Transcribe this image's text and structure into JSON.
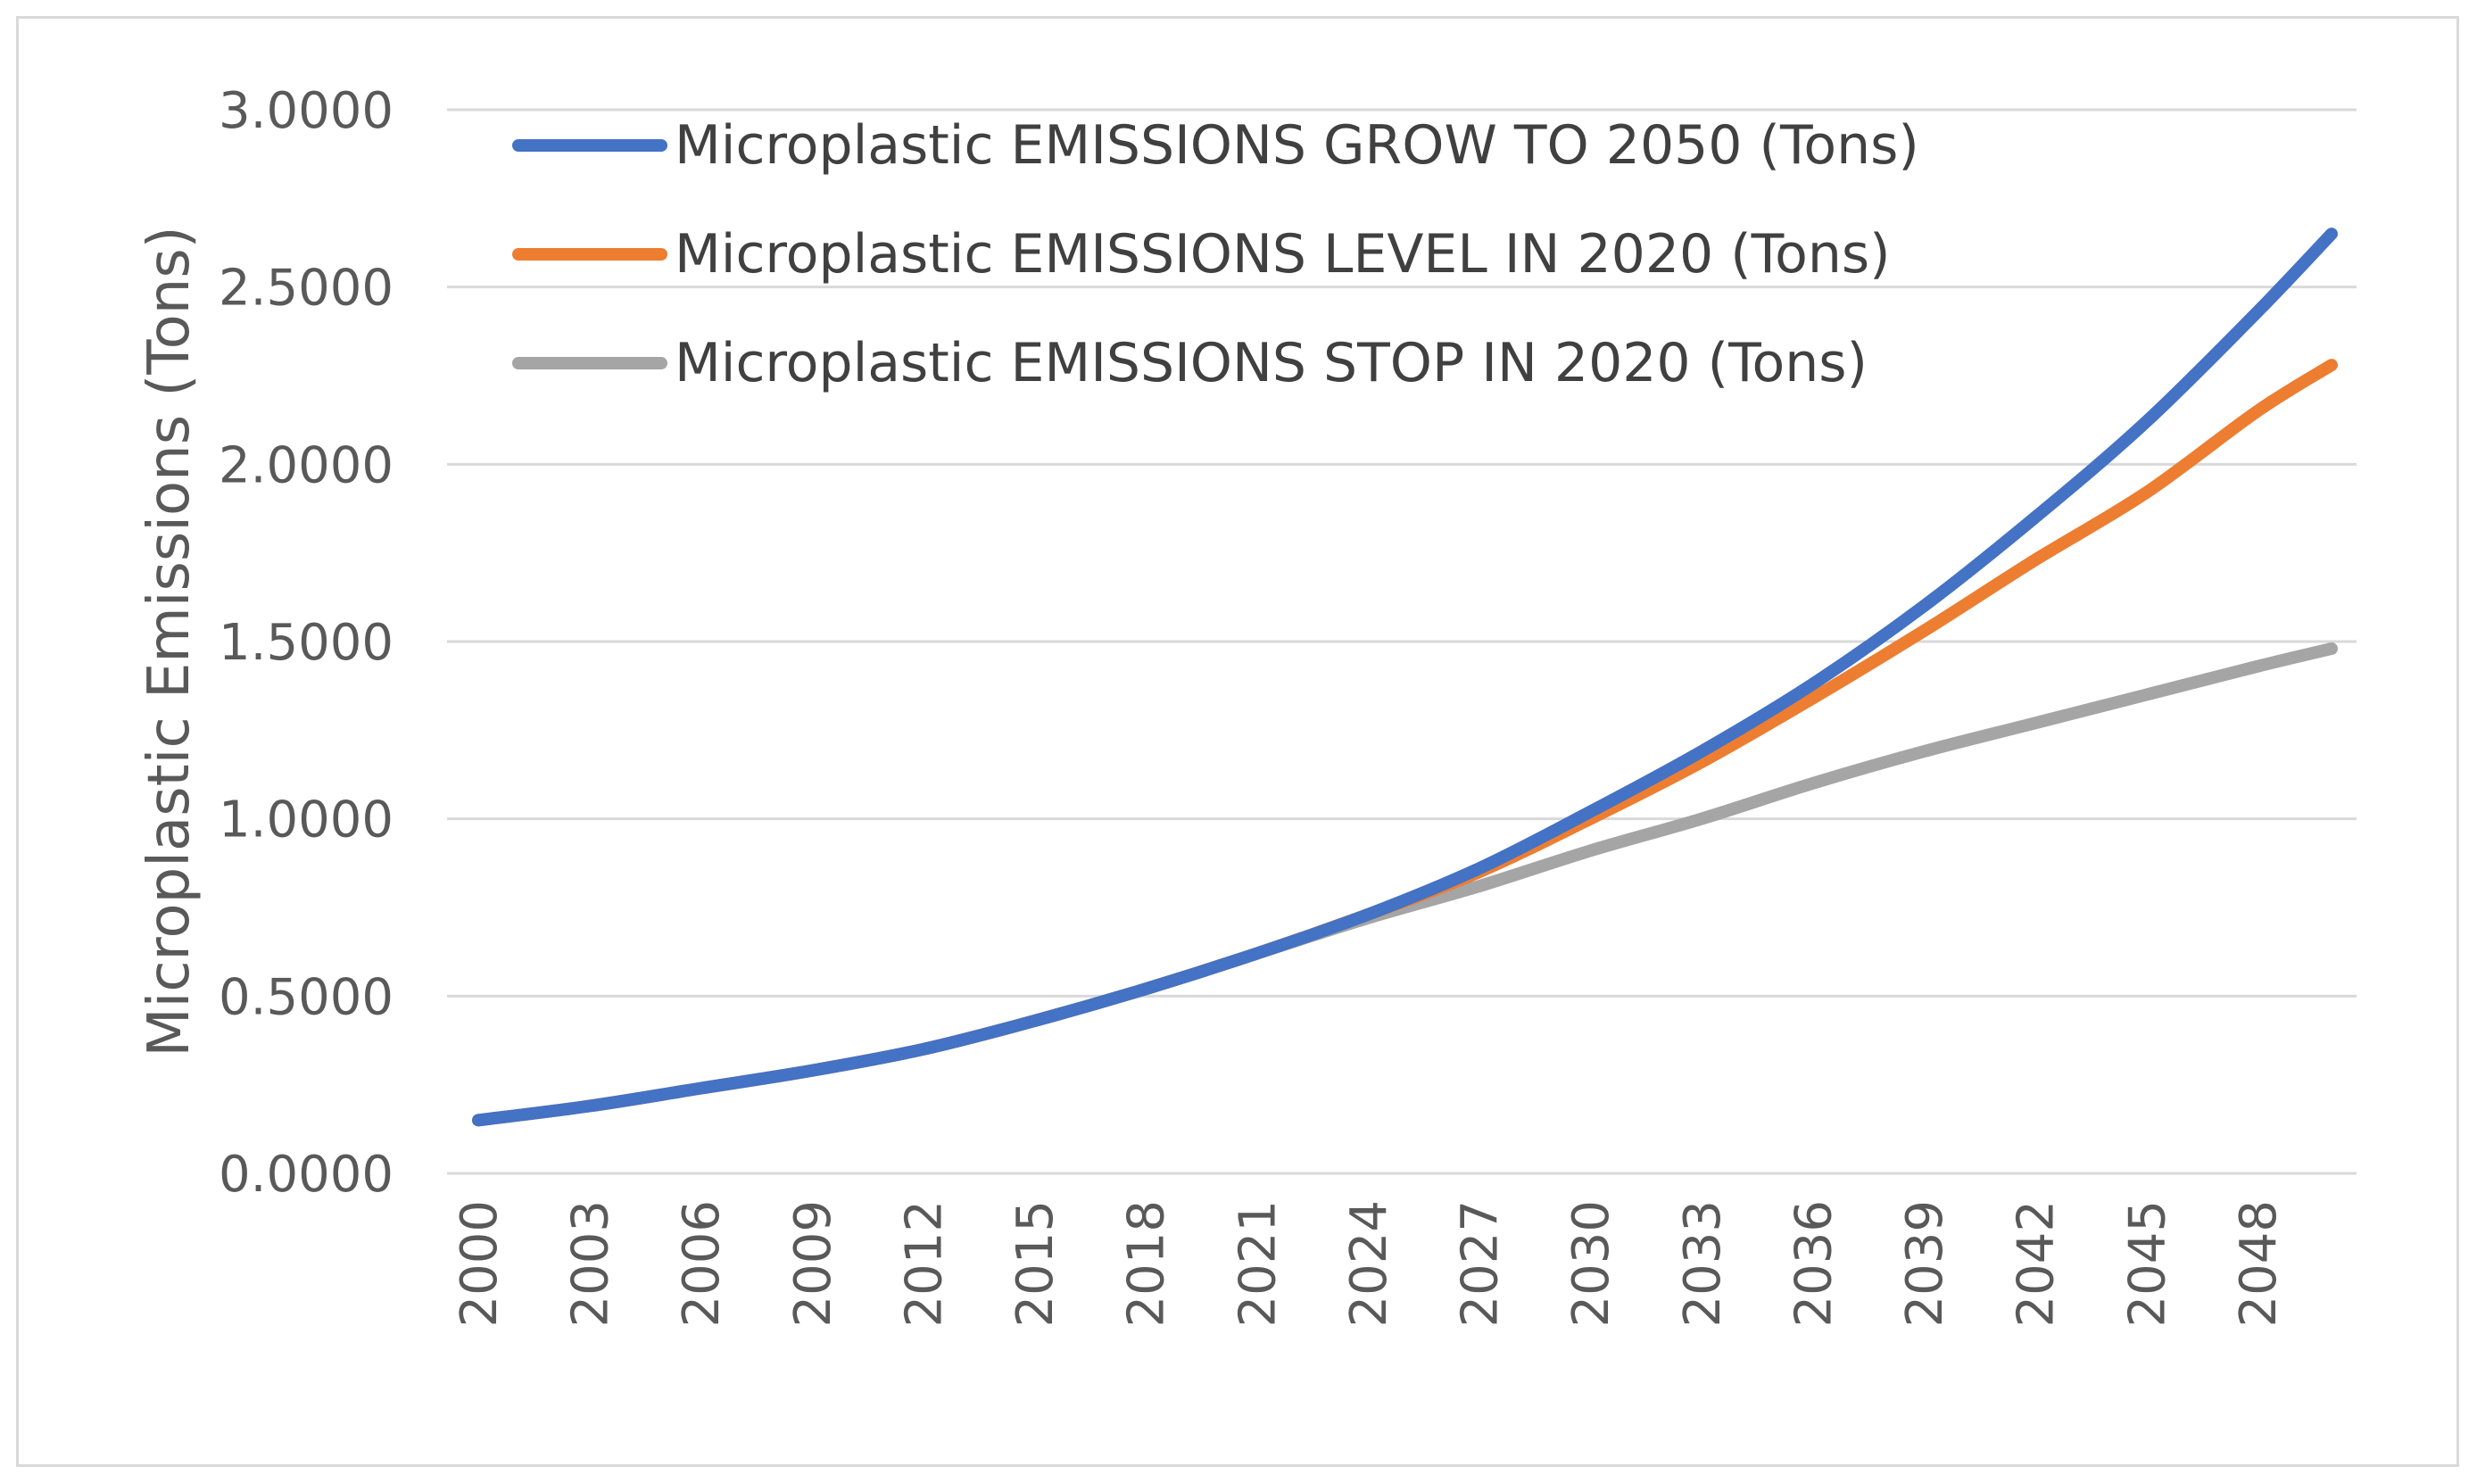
{
  "chart_data": {
    "type": "line",
    "title": "",
    "xlabel": "",
    "ylabel": "Microplastic Emissions (Tons)",
    "ylim": [
      0,
      3
    ],
    "grid": true,
    "legend_position": "top-left",
    "y_ticks": [
      "0.0000",
      "0.5000",
      "1.0000",
      "1.5000",
      "2.0000",
      "2.5000",
      "3.0000"
    ],
    "x_ticks": [
      "2000",
      "2003",
      "2006",
      "2009",
      "2012",
      "2015",
      "2018",
      "2021",
      "2024",
      "2027",
      "2030",
      "2033",
      "2036",
      "2039",
      "2042",
      "2045",
      "2048"
    ],
    "x": [
      2000,
      2003,
      2006,
      2009,
      2012,
      2015,
      2018,
      2021,
      2024,
      2027,
      2030,
      2033,
      2036,
      2039,
      2042,
      2045,
      2048,
      2050
    ],
    "series": [
      {
        "name": "Microplastic EMISSIONS GROW TO 2050 (Tons)",
        "color": "#4472c4",
        "values": [
          0.15,
          0.19,
          0.24,
          0.29,
          0.35,
          0.43,
          0.52,
          0.62,
          0.73,
          0.86,
          1.02,
          1.19,
          1.38,
          1.6,
          1.85,
          2.12,
          2.43,
          2.65
        ]
      },
      {
        "name": "Microplastic EMISSIONS LEVEL IN 2020 (Tons)",
        "color": "#ed7d31",
        "values": [
          0.15,
          0.19,
          0.24,
          0.29,
          0.35,
          0.43,
          0.52,
          0.62,
          0.73,
          0.85,
          1.0,
          1.16,
          1.34,
          1.53,
          1.73,
          1.92,
          2.15,
          2.28
        ]
      },
      {
        "name": "Microplastic EMISSIONS STOP IN 2020 (Tons)",
        "color": "#a5a5a5",
        "values": [
          0.15,
          0.19,
          0.24,
          0.29,
          0.35,
          0.43,
          0.52,
          0.62,
          0.72,
          0.81,
          0.91,
          1.0,
          1.1,
          1.19,
          1.27,
          1.35,
          1.43,
          1.48
        ]
      }
    ]
  }
}
